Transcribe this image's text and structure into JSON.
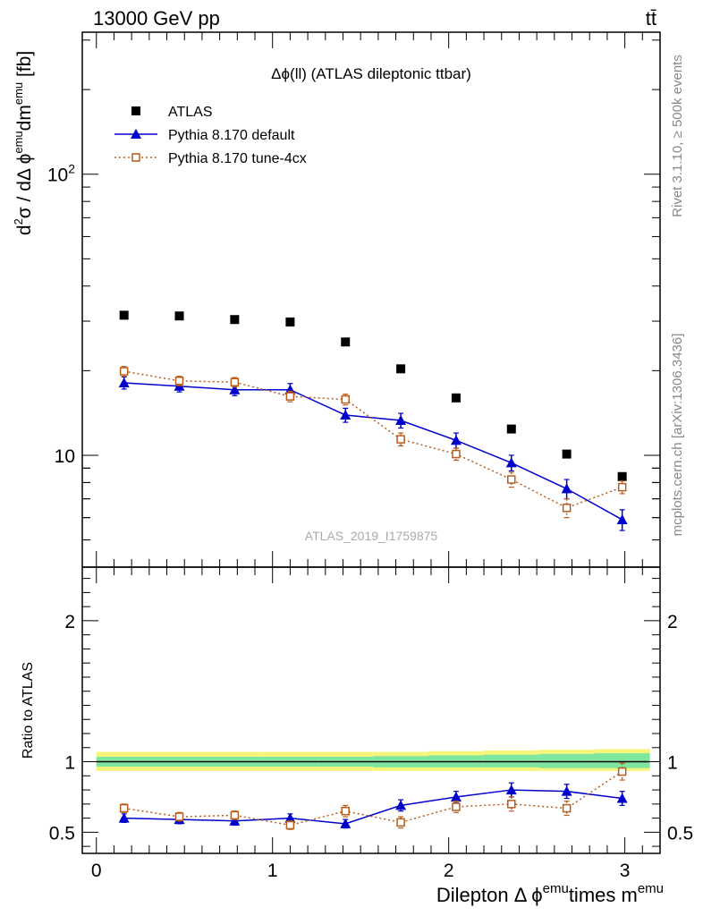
{
  "header": {
    "energy_label": "13000 GeV pp",
    "process_label": "tt̄"
  },
  "side_labels": {
    "rivet": "Rivet 3.1.10, ≥ 500k events",
    "mcplots": "mcplots.cern.ch [arXiv:1306.3436]"
  },
  "chart_data": [
    {
      "type": "scatter",
      "title": "Δϕ(ll) (ATLAS dileptonic ttbar)",
      "watermark": "ATLAS_2019_I1759875",
      "xlabel": "Dilepton Δ ϕ^emu times m^emu",
      "ylabel": "d²σ / dΔ ϕ^emu dm^emu [fb]",
      "ylabel_parts": {
        "d": "d",
        "two": "2",
        "sigma_over": "σ / dΔ ϕ",
        "emu1": "emu",
        "dm": "dm",
        "emu2": "emu",
        "unit": " [fb]"
      },
      "yscale": "log",
      "xlim": [
        -0.08,
        3.2
      ],
      "ylim": [
        4.0,
        320
      ],
      "ytick_labels": [
        {
          "value": 10,
          "label": "10"
        },
        {
          "value": 100,
          "label": "10",
          "sup": "2"
        }
      ],
      "legend_position": "top-left",
      "series": [
        {
          "name": "ATLAS",
          "color": "#000000",
          "marker": "square",
          "x": [
            0.157,
            0.471,
            0.785,
            1.1,
            1.414,
            1.728,
            2.042,
            2.356,
            2.67,
            2.985
          ],
          "y": [
            31.5,
            31.3,
            30.4,
            29.8,
            25.3,
            20.3,
            16.0,
            12.4,
            10.1,
            8.4
          ]
        },
        {
          "name": "Pythia 8.170 default",
          "color": "#0000cc",
          "marker": "triangle",
          "line": "solid",
          "x": [
            0.157,
            0.471,
            0.785,
            1.1,
            1.414,
            1.728,
            2.042,
            2.356,
            2.67,
            2.985
          ],
          "y": [
            18.1,
            17.6,
            17.1,
            17.1,
            13.9,
            13.3,
            11.3,
            9.4,
            7.6,
            5.9
          ],
          "err": [
            0.9,
            0.8,
            0.8,
            0.9,
            0.8,
            0.8,
            0.7,
            0.6,
            0.6,
            0.5
          ]
        },
        {
          "name": "Pythia 8.170 tune-4cx",
          "color": "#b85c1e",
          "marker": "open-square",
          "line": "dotted",
          "x": [
            0.157,
            0.471,
            0.785,
            1.1,
            1.414,
            1.728,
            2.042,
            2.356,
            2.67,
            2.985
          ],
          "y": [
            19.9,
            18.4,
            18.2,
            16.2,
            15.8,
            11.4,
            10.1,
            8.2,
            6.5,
            7.7
          ],
          "err": [
            0.8,
            0.7,
            0.7,
            0.7,
            0.7,
            0.6,
            0.5,
            0.5,
            0.5,
            0.4
          ]
        }
      ]
    },
    {
      "type": "scatter",
      "ylabel": "Ratio to ATLAS",
      "xlabel": "Dilepton Δ ϕ^emu times m^emu",
      "xlabel_parts": {
        "prefix": "Dilepton Δ ϕ",
        "emu1": "emu",
        "times": "times m",
        "emu2": "emu"
      },
      "xlim": [
        -0.08,
        3.2
      ],
      "ylim": [
        0.35,
        2.38
      ],
      "xticks": [
        0,
        1,
        2,
        3
      ],
      "xtick_labels": [
        "0",
        "1",
        "2",
        "3"
      ],
      "yticks": [
        0.5,
        1,
        2
      ],
      "ytick_labels": [
        "0.5",
        "1",
        "2"
      ],
      "reference_line": 1,
      "uncertainty_bands": {
        "color_outer": "#f5f57a",
        "color_inner": "#7fe6a0",
        "x_edges": [
          0.0,
          0.314,
          0.628,
          0.942,
          1.257,
          1.571,
          1.885,
          2.199,
          2.513,
          2.827,
          3.142
        ],
        "outer": [
          [
            0.935,
            1.07
          ],
          [
            0.935,
            1.07
          ],
          [
            0.935,
            1.07
          ],
          [
            0.935,
            1.07
          ],
          [
            0.935,
            1.07
          ],
          [
            0.935,
            1.07
          ],
          [
            0.935,
            1.075
          ],
          [
            0.935,
            1.08
          ],
          [
            0.935,
            1.085
          ],
          [
            0.935,
            1.09
          ]
        ],
        "inner": [
          [
            0.965,
            1.035
          ],
          [
            0.965,
            1.035
          ],
          [
            0.965,
            1.035
          ],
          [
            0.965,
            1.035
          ],
          [
            0.965,
            1.035
          ],
          [
            0.96,
            1.04
          ],
          [
            0.96,
            1.045
          ],
          [
            0.96,
            1.05
          ],
          [
            0.955,
            1.055
          ],
          [
            0.955,
            1.06
          ]
        ]
      },
      "series": [
        {
          "name": "Pythia 8.170 default",
          "color": "#0000cc",
          "marker": "triangle",
          "line": "solid",
          "x": [
            0.157,
            0.471,
            0.785,
            1.1,
            1.414,
            1.728,
            2.042,
            2.356,
            2.67,
            2.985
          ],
          "y": [
            0.6,
            0.59,
            0.58,
            0.6,
            0.56,
            0.69,
            0.75,
            0.8,
            0.79,
            0.74
          ],
          "err": [
            0.03,
            0.03,
            0.03,
            0.03,
            0.03,
            0.04,
            0.04,
            0.05,
            0.05,
            0.05
          ]
        },
        {
          "name": "Pythia 8.170 tune-4cx",
          "color": "#b85c1e",
          "marker": "open-square",
          "line": "dotted",
          "x": [
            0.157,
            0.471,
            0.785,
            1.1,
            1.414,
            1.728,
            2.042,
            2.356,
            2.67,
            2.985
          ],
          "y": [
            0.67,
            0.61,
            0.62,
            0.55,
            0.65,
            0.57,
            0.68,
            0.7,
            0.67,
            0.93
          ],
          "err": [
            0.03,
            0.03,
            0.03,
            0.03,
            0.04,
            0.04,
            0.04,
            0.05,
            0.05,
            0.06
          ]
        }
      ]
    }
  ]
}
